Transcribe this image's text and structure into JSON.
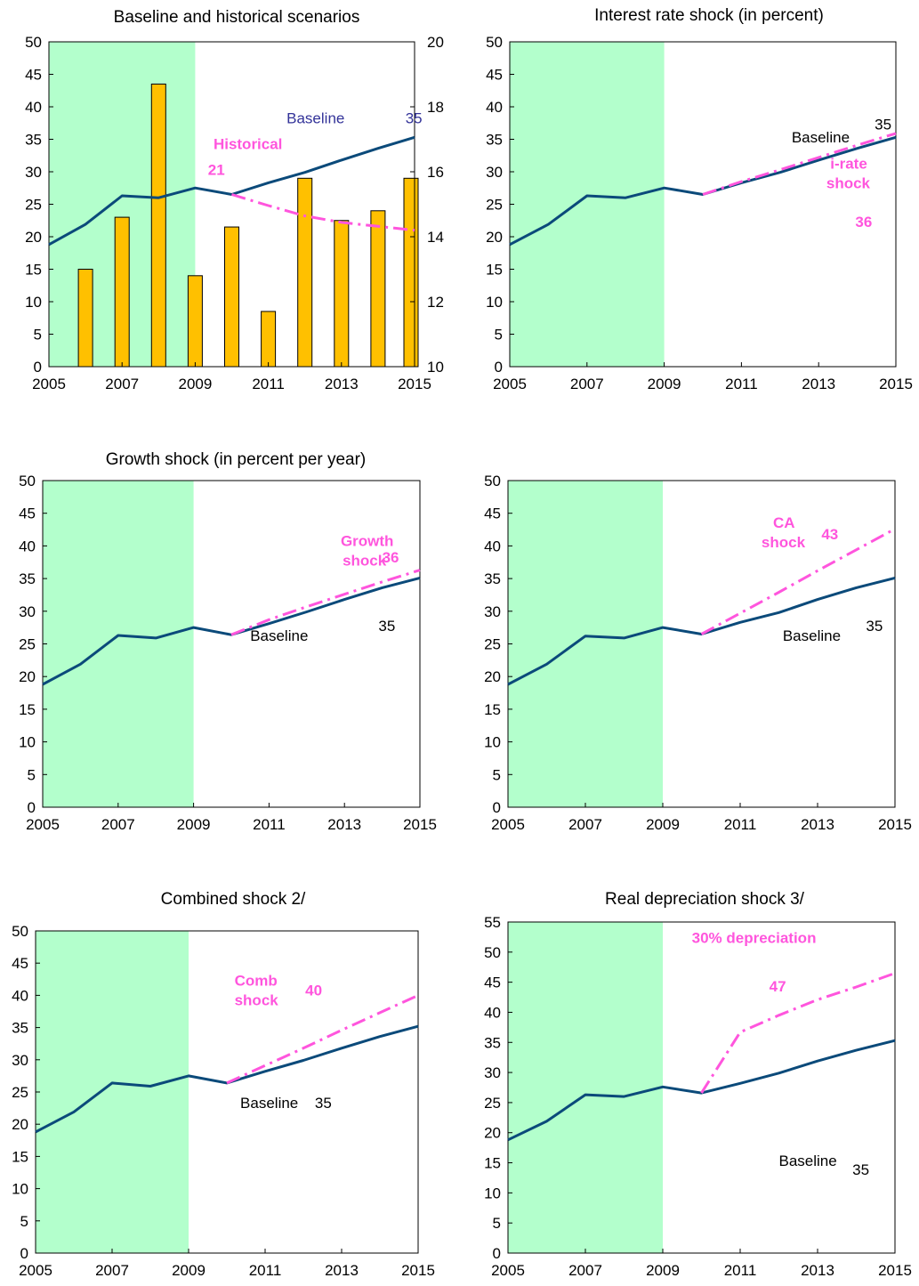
{
  "colors": {
    "baseline": "#0b4a7a",
    "shock": "#ff55dd",
    "bars": "#ffc000",
    "bar_outline": "#000000",
    "shade": "#b3ffcc",
    "hist_label": "#333399"
  },
  "chart_data": [
    {
      "id": "p1",
      "type": "bar+line",
      "title": "Baseline and historical scenarios",
      "xlim": [
        2005,
        2015
      ],
      "ylim": [
        0,
        50
      ],
      "y_ticks": [
        0,
        5,
        10,
        15,
        20,
        25,
        30,
        35,
        40,
        45,
        50
      ],
      "y2lim": [
        10,
        20
      ],
      "y2_ticks": [
        10,
        12,
        14,
        16,
        18,
        20
      ],
      "x_ticks": [
        2005,
        2007,
        2009,
        2011,
        2013,
        2015
      ],
      "shade_range": [
        2005,
        2009
      ],
      "bars": {
        "axis": "secondary",
        "x": [
          2006,
          2007,
          2008,
          2009,
          2010,
          2011,
          2012,
          2013,
          2014,
          2015
        ],
        "values": [
          13.0,
          14.6,
          18.7,
          12.8,
          14.3,
          11.7,
          15.8,
          14.5,
          14.8,
          15.8
        ]
      },
      "series": [
        {
          "style": "baseline",
          "x": [
            2005,
            2006,
            2007,
            2008,
            2009,
            2010,
            2011,
            2012,
            2013,
            2014,
            2015
          ],
          "values": [
            18.8,
            21.9,
            26.3,
            26.0,
            27.5,
            26.5,
            28.3,
            29.9,
            31.8,
            33.6,
            35.3
          ]
        },
        {
          "style": "shock",
          "x": [
            2010,
            2011,
            2012,
            2013,
            2014,
            2015
          ],
          "values": [
            26.5,
            24.8,
            23.2,
            22.2,
            21.6,
            21.0
          ]
        }
      ],
      "annotations": [
        {
          "text": "Baseline",
          "x": 2011.5,
          "y": 37.5,
          "style": "blue"
        },
        {
          "text": "35",
          "x": 2014.75,
          "y": 37.5,
          "style": "blue"
        },
        {
          "text": "Historical",
          "x": 2009.5,
          "y": 33.5,
          "style": "pink"
        },
        {
          "text": "21",
          "x": 2009.35,
          "y": 29.5,
          "style": "pink"
        }
      ]
    },
    {
      "id": "p2",
      "type": "line",
      "title": "Interest rate shock (in percent)",
      "xlim": [
        2005,
        2015
      ],
      "ylim": [
        0,
        50
      ],
      "y_ticks": [
        0,
        5,
        10,
        15,
        20,
        25,
        30,
        35,
        40,
        45,
        50
      ],
      "x_ticks": [
        2005,
        2007,
        2009,
        2011,
        2013,
        2015
      ],
      "shade_range": [
        2005,
        2009
      ],
      "series": [
        {
          "style": "baseline",
          "x": [
            2005,
            2006,
            2007,
            2008,
            2009,
            2010,
            2011,
            2012,
            2013,
            2014,
            2015
          ],
          "values": [
            18.8,
            21.9,
            26.3,
            26.0,
            27.5,
            26.5,
            28.3,
            29.9,
            31.8,
            33.6,
            35.3
          ]
        },
        {
          "style": "shock",
          "x": [
            2010,
            2011,
            2012,
            2013,
            2014,
            2015
          ],
          "values": [
            26.5,
            28.5,
            30.3,
            32.2,
            34.1,
            35.9
          ]
        }
      ],
      "annotations": [
        {
          "text": "Baseline",
          "x": 2012.3,
          "y": 34.5,
          "style": "black"
        },
        {
          "text": "35",
          "x": 2014.45,
          "y": 36.5,
          "style": "black"
        },
        {
          "text": "i-rate",
          "x": 2013.3,
          "y": 30.5,
          "style": "pink"
        },
        {
          "text": "shock",
          "x": 2013.2,
          "y": 27.5,
          "style": "pink"
        },
        {
          "text": "36",
          "x": 2013.95,
          "y": 21.5,
          "style": "pink"
        }
      ]
    },
    {
      "id": "p3",
      "type": "line",
      "title": "Growth shock (in percent per year)",
      "xlim": [
        2005,
        2015
      ],
      "ylim": [
        0,
        50
      ],
      "y_ticks": [
        0,
        5,
        10,
        15,
        20,
        25,
        30,
        35,
        40,
        45,
        50
      ],
      "x_ticks": [
        2005,
        2007,
        2009,
        2011,
        2013,
        2015
      ],
      "shade_range": [
        2005,
        2009
      ],
      "series": [
        {
          "style": "baseline",
          "x": [
            2005,
            2006,
            2007,
            2008,
            2009,
            2010,
            2011,
            2012,
            2013,
            2014,
            2015
          ],
          "values": [
            18.8,
            21.9,
            26.3,
            25.9,
            27.5,
            26.4,
            28.1,
            29.9,
            31.8,
            33.6,
            35.1
          ]
        },
        {
          "style": "shock",
          "x": [
            2010,
            2011,
            2012,
            2013,
            2014,
            2015
          ],
          "values": [
            26.4,
            28.7,
            30.7,
            32.6,
            34.5,
            36.3
          ]
        }
      ],
      "annotations": [
        {
          "text": "Growth",
          "x": 2012.9,
          "y": 40.0,
          "style": "pink"
        },
        {
          "text": "shock",
          "x": 2012.95,
          "y": 37.0,
          "style": "pink"
        },
        {
          "text": "36",
          "x": 2014.0,
          "y": 37.5,
          "style": "pink"
        },
        {
          "text": "Baseline",
          "x": 2010.5,
          "y": 25.5,
          "style": "black"
        },
        {
          "text": "35",
          "x": 2013.9,
          "y": 27.0,
          "style": "black"
        }
      ]
    },
    {
      "id": "p4",
      "type": "line",
      "title": "",
      "xlim": [
        2005,
        2015
      ],
      "ylim": [
        0,
        50
      ],
      "y_ticks": [
        0,
        5,
        10,
        15,
        20,
        25,
        30,
        35,
        40,
        45,
        50
      ],
      "x_ticks": [
        2005,
        2007,
        2009,
        2011,
        2013,
        2015
      ],
      "shade_range": [
        2005,
        2009
      ],
      "series": [
        {
          "style": "baseline",
          "x": [
            2005,
            2006,
            2007,
            2008,
            2009,
            2010,
            2011,
            2012,
            2013,
            2014,
            2015
          ],
          "values": [
            18.8,
            21.9,
            26.2,
            25.9,
            27.5,
            26.5,
            28.3,
            29.8,
            31.8,
            33.6,
            35.1
          ]
        },
        {
          "style": "shock",
          "x": [
            2010,
            2011,
            2012,
            2013,
            2014,
            2015
          ],
          "values": [
            26.5,
            29.7,
            32.9,
            36.2,
            39.4,
            42.6
          ]
        }
      ],
      "annotations": [
        {
          "text": "CA",
          "x": 2011.85,
          "y": 42.8,
          "style": "pink"
        },
        {
          "text": "shock",
          "x": 2011.55,
          "y": 39.8,
          "style": "pink"
        },
        {
          "text": "43",
          "x": 2013.1,
          "y": 41.0,
          "style": "pink"
        },
        {
          "text": "Baseline",
          "x": 2012.1,
          "y": 25.5,
          "style": "black"
        },
        {
          "text": "35",
          "x": 2014.25,
          "y": 27.0,
          "style": "black"
        }
      ]
    },
    {
      "id": "p5",
      "type": "line",
      "title": "Combined shock  2/",
      "xlim": [
        2005,
        2015
      ],
      "ylim": [
        0,
        50
      ],
      "y_ticks": [
        0,
        5,
        10,
        15,
        20,
        25,
        30,
        35,
        40,
        45,
        50
      ],
      "x_ticks": [
        2005,
        2007,
        2009,
        2011,
        2013,
        2015
      ],
      "shade_range": [
        2005,
        2009
      ],
      "series": [
        {
          "style": "baseline",
          "x": [
            2005,
            2006,
            2007,
            2008,
            2009,
            2010,
            2011,
            2012,
            2013,
            2014,
            2015
          ],
          "values": [
            18.8,
            21.9,
            26.4,
            25.9,
            27.5,
            26.4,
            28.2,
            29.9,
            31.8,
            33.6,
            35.2
          ]
        },
        {
          "style": "shock",
          "x": [
            2010,
            2011,
            2012,
            2013,
            2014,
            2015
          ],
          "values": [
            26.4,
            29.1,
            31.8,
            34.6,
            37.3,
            40.0
          ]
        }
      ],
      "annotations": [
        {
          "text": "Comb",
          "x": 2010.2,
          "y": 41.5,
          "style": "pink"
        },
        {
          "text": "shock",
          "x": 2010.2,
          "y": 38.5,
          "style": "pink"
        },
        {
          "text": "40",
          "x": 2012.05,
          "y": 40.0,
          "style": "pink"
        },
        {
          "text": "Baseline",
          "x": 2010.35,
          "y": 22.5,
          "style": "black"
        },
        {
          "text": "35",
          "x": 2012.3,
          "y": 22.5,
          "style": "black"
        }
      ]
    },
    {
      "id": "p6",
      "type": "line",
      "title": "Real depreciation shock  3/",
      "xlim": [
        2005,
        2015
      ],
      "ylim": [
        0,
        55
      ],
      "y_ticks": [
        0,
        5,
        10,
        15,
        20,
        25,
        30,
        35,
        40,
        45,
        50,
        55
      ],
      "x_ticks": [
        2005,
        2007,
        2009,
        2011,
        2013,
        2015
      ],
      "shade_range": [
        2005,
        2009
      ],
      "series": [
        {
          "style": "baseline",
          "x": [
            2005,
            2006,
            2007,
            2008,
            2009,
            2010,
            2011,
            2012,
            2013,
            2014,
            2015
          ],
          "values": [
            18.8,
            21.9,
            26.3,
            26.0,
            27.6,
            26.6,
            28.2,
            29.9,
            31.9,
            33.7,
            35.3
          ]
        },
        {
          "style": "shock",
          "x": [
            2010,
            2011,
            2012,
            2013,
            2014,
            2015
          ],
          "values": [
            26.6,
            36.7,
            39.5,
            42.1,
            44.2,
            46.5
          ]
        }
      ],
      "annotations": [
        {
          "text": "30% depreciation",
          "x": 2009.75,
          "y": 51.5,
          "style": "pink"
        },
        {
          "text": "47",
          "x": 2011.75,
          "y": 43.5,
          "style": "pink"
        },
        {
          "text": "Baseline",
          "x": 2012.0,
          "y": 14.5,
          "style": "black"
        },
        {
          "text": "35",
          "x": 2013.9,
          "y": 13.0,
          "style": "black"
        }
      ]
    }
  ]
}
